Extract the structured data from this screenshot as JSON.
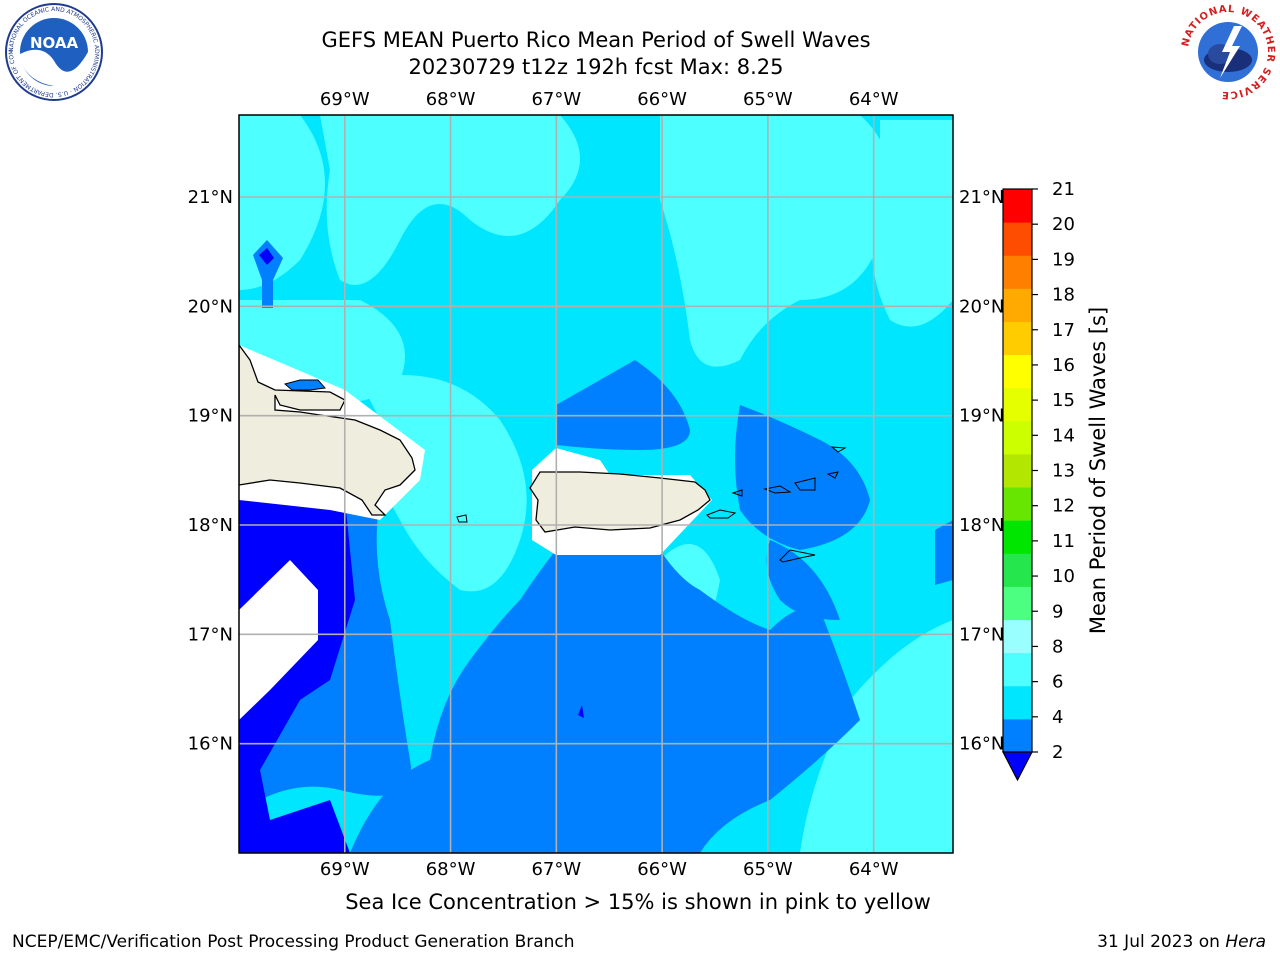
{
  "header": {
    "title_line1": "GEFS MEAN Puerto Rico Mean Period of Swell Waves",
    "title_line2": "20230729 t12z 192h fcst   Max: 8.25"
  },
  "logos": {
    "noaa_text": "NOAA",
    "noaa_ring_text": "NATIONAL OCEANIC AND ATMOSPHERIC ADMINISTRATION · U.S. DEPARTMENT OF COMMERCE",
    "nws_ring_text": "NATIONAL WEATHER SERVICE"
  },
  "map": {
    "lon_labels": [
      "69°W",
      "68°W",
      "67°W",
      "66°W",
      "65°W",
      "64°W"
    ],
    "lat_labels": [
      "21°N",
      "20°N",
      "19°N",
      "18°N",
      "17°N",
      "16°N"
    ],
    "lon_values": [
      -69,
      -68,
      -67,
      -66,
      -65,
      -64
    ],
    "lat_values": [
      21,
      20,
      19,
      18,
      17,
      16
    ],
    "extent": {
      "lon_min": -70,
      "lon_max": -63.25,
      "lat_min": 15,
      "lat_max": 21.75
    },
    "grid": true
  },
  "colorbar": {
    "label": "Mean Period of Swell Waves [s]",
    "ticks": [
      "2",
      "4",
      "6",
      "8",
      "9",
      "10",
      "11",
      "12",
      "13",
      "14",
      "15",
      "16",
      "17",
      "18",
      "19",
      "20",
      "21"
    ],
    "colors": [
      "#0080ff",
      "#00e6ff",
      "#4dffff",
      "#99ffff",
      "#4dff80",
      "#26e64d",
      "#00e600",
      "#66e600",
      "#b3e600",
      "#ccff00",
      "#e6ff00",
      "#ffff00",
      "#ffcc00",
      "#ffaa00",
      "#ff8000",
      "#ff4d00",
      "#ff0000"
    ],
    "under_color": "#0000ff"
  },
  "colors": {
    "land": "#efedde",
    "period_2_4": "#0080ff",
    "period_4_6": "#00e6ff",
    "period_6_8": "#4dffff",
    "period_below_2": "#0000ff",
    "grid_line": "#b0b0b0"
  },
  "caption": "Sea Ice Concentration > 15% is shown in pink to yellow",
  "footer": {
    "left": "NCEP/EMC/Verification Post Processing Product Generation Branch",
    "right_date": "31 Jul 2023 on ",
    "right_host": "Hera"
  }
}
